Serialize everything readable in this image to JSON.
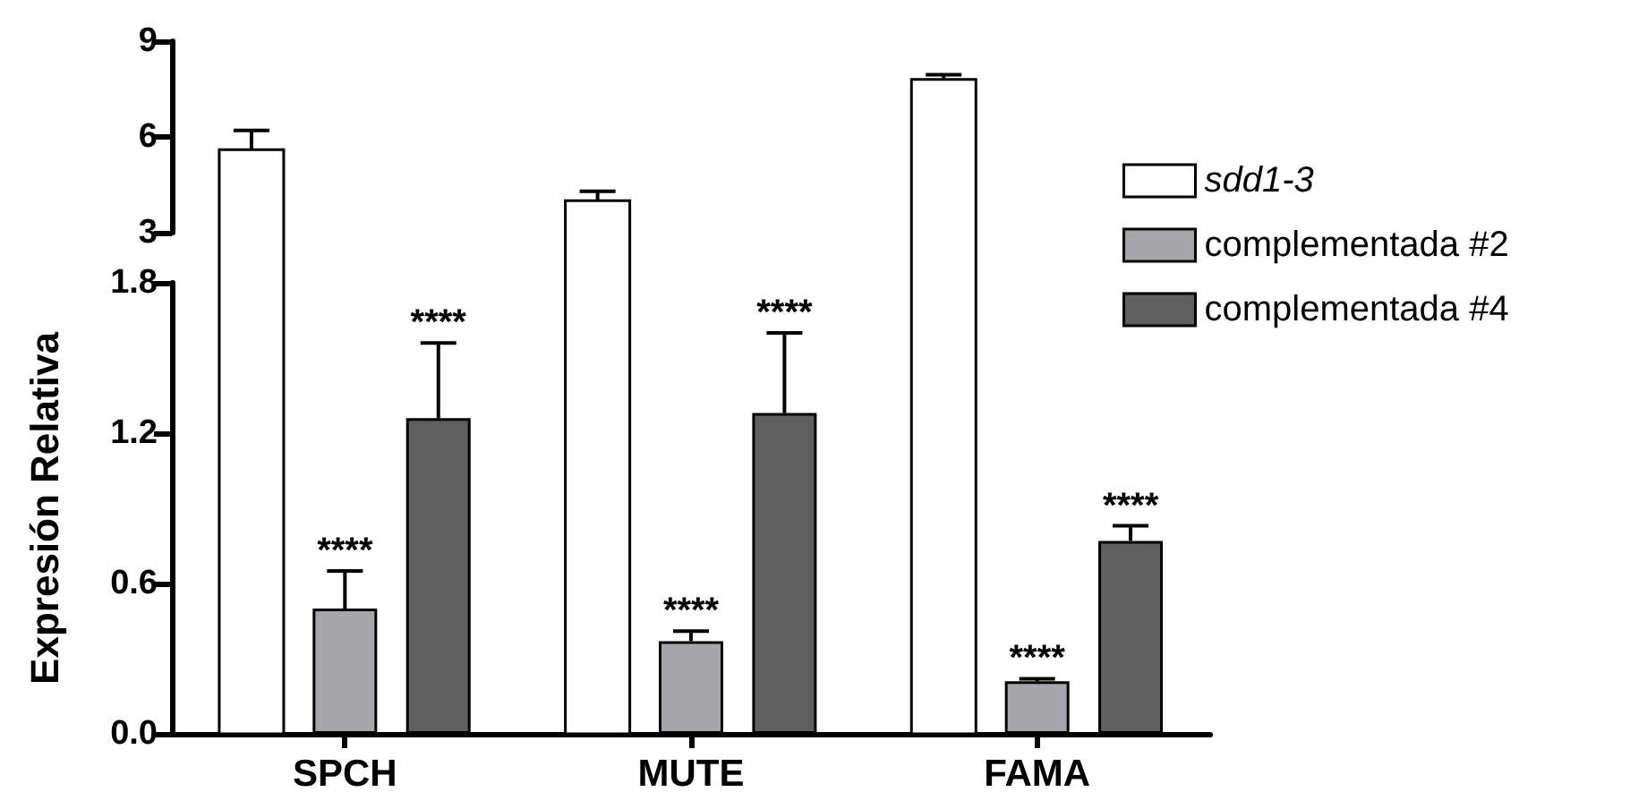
{
  "chart_data": [
    {
      "type": "bar",
      "categories": [
        null,
        null,
        null
      ],
      "ylim": [
        3,
        9
      ],
      "yticks": [
        3,
        6,
        9
      ],
      "tick_labels": "y",
      "grid": false,
      "series": [
        {
          "color": "#ffffff",
          "values": [
            5.6,
            4.0,
            7.8
          ],
          "errors": [
            [
              5.6,
              6.2
            ],
            [
              4.0,
              4.3
            ],
            [
              7.8,
              7.95
            ]
          ]
        }
      ]
    },
    {
      "type": "bar",
      "ylabel": "Expresión Relativa",
      "categories": [
        "SPCH",
        "MUTE",
        "FAMA"
      ],
      "ylim": [
        0,
        1.8
      ],
      "yticks": [
        {
          "value": 0,
          "label": "0.0"
        },
        {
          "value": 0.6,
          "label": "0.6"
        },
        {
          "value": 1.2,
          "label": "1.2"
        },
        {
          "value": 1.8,
          "label": "1.8"
        }
      ],
      "grid": false,
      "legend": "right",
      "series": [
        {
          "name": "sdd1-3",
          "color": "#ffffff",
          "values": [
            null,
            null,
            null
          ]
        },
        {
          "name": "complementada #2",
          "color": "#a6a6aa",
          "values": [
            0.5,
            0.37,
            0.21
          ],
          "errors": [
            [
              0.5,
              0.65
            ],
            [
              0.37,
              0.41
            ],
            [
              0.21,
              0.22
            ]
          ]
        },
        {
          "name": "complementada #4",
          "color": "#5f5f5f",
          "values": [
            1.26,
            1.28,
            0.77
          ],
          "errors": [
            [
              1.26,
              1.56
            ],
            [
              1.28,
              1.6
            ],
            [
              0.77,
              0.83
            ]
          ]
        }
      ],
      "annotations": [
        "****",
        "****",
        "****",
        "****",
        "****",
        "****"
      ]
    }
  ]
}
